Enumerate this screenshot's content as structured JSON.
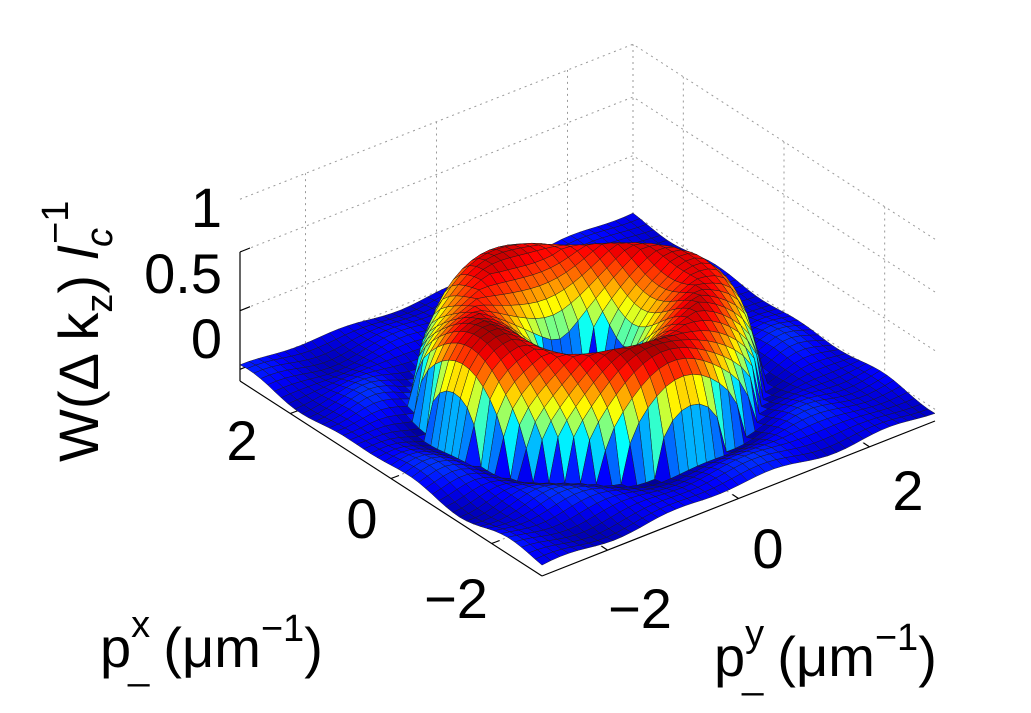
{
  "chart_data": {
    "type": "surface",
    "surface": {
      "kind": "radial-ring",
      "x_range": [
        -3,
        3
      ],
      "y_range": [
        -3,
        3
      ],
      "grid_points": 45,
      "ring_radius": 1.3,
      "ring_half_width": 0.8,
      "ring_top_height": 0.77,
      "ring_inner_height": 0.55,
      "center_depth": -0.1,
      "background_ripple_amplitude": 0.04,
      "colormap": "jet"
    },
    "axes": {
      "z_label": {
        "main": "W(Δ k",
        "sub": "z",
        "mid": ") ",
        "l": "l",
        "lsub": "c",
        "lsup": "−1"
      },
      "x_label": {
        "p": "p",
        "sup": "x",
        "sub": "_",
        "unit": "(μm",
        "unit_sup": "−1",
        "close": ")"
      },
      "y_label": {
        "p": "p",
        "sup": "y",
        "sub": "_",
        "unit": "(μm",
        "unit_sup": "−1",
        "close": ")"
      },
      "z_ticks": [
        "0",
        "0.5",
        "1"
      ],
      "x_ticks": [
        "−2",
        "0",
        "2"
      ],
      "y_ticks": [
        "−2",
        "0",
        "2"
      ],
      "z_lim": [
        -0.1,
        1.0
      ],
      "x_lim": [
        -3,
        3
      ],
      "y_lim": [
        -3,
        3
      ],
      "grid": true
    }
  }
}
